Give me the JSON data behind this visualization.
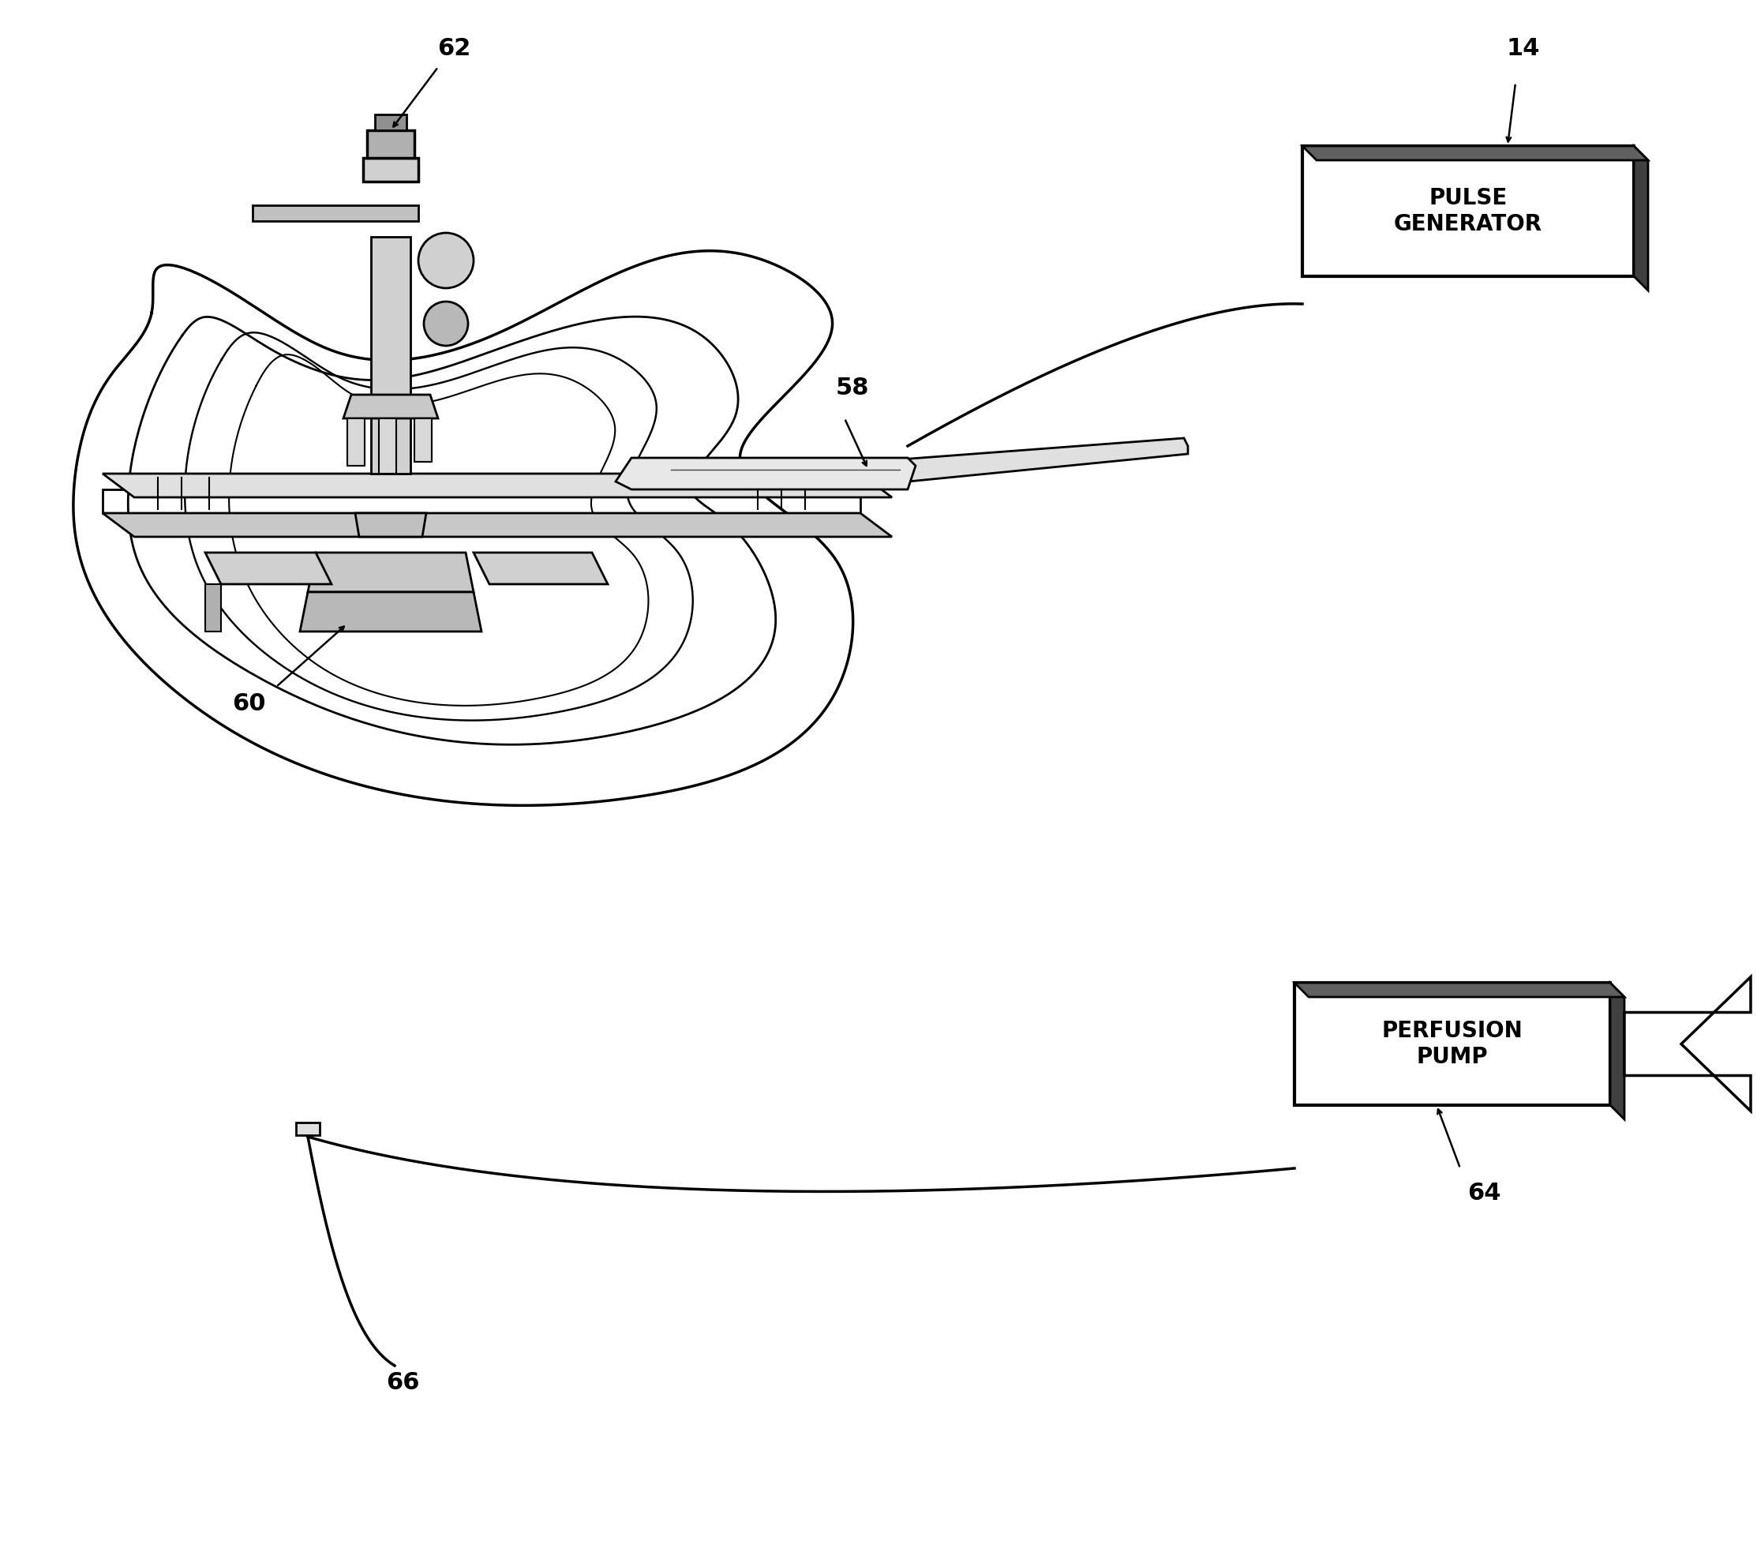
{
  "fig_width": 22.26,
  "fig_height": 19.8,
  "bg_color": "#ffffff",
  "line_color": "#000000",
  "label_62": "62",
  "label_60": "60",
  "label_58": "58",
  "label_14": "14",
  "label_64": "64",
  "label_66": "66",
  "box1_text": "PULSE\nGENERATOR",
  "box2_text": "PERFUSION\nPUMP",
  "font_size_labels": 22,
  "font_size_box": 20
}
